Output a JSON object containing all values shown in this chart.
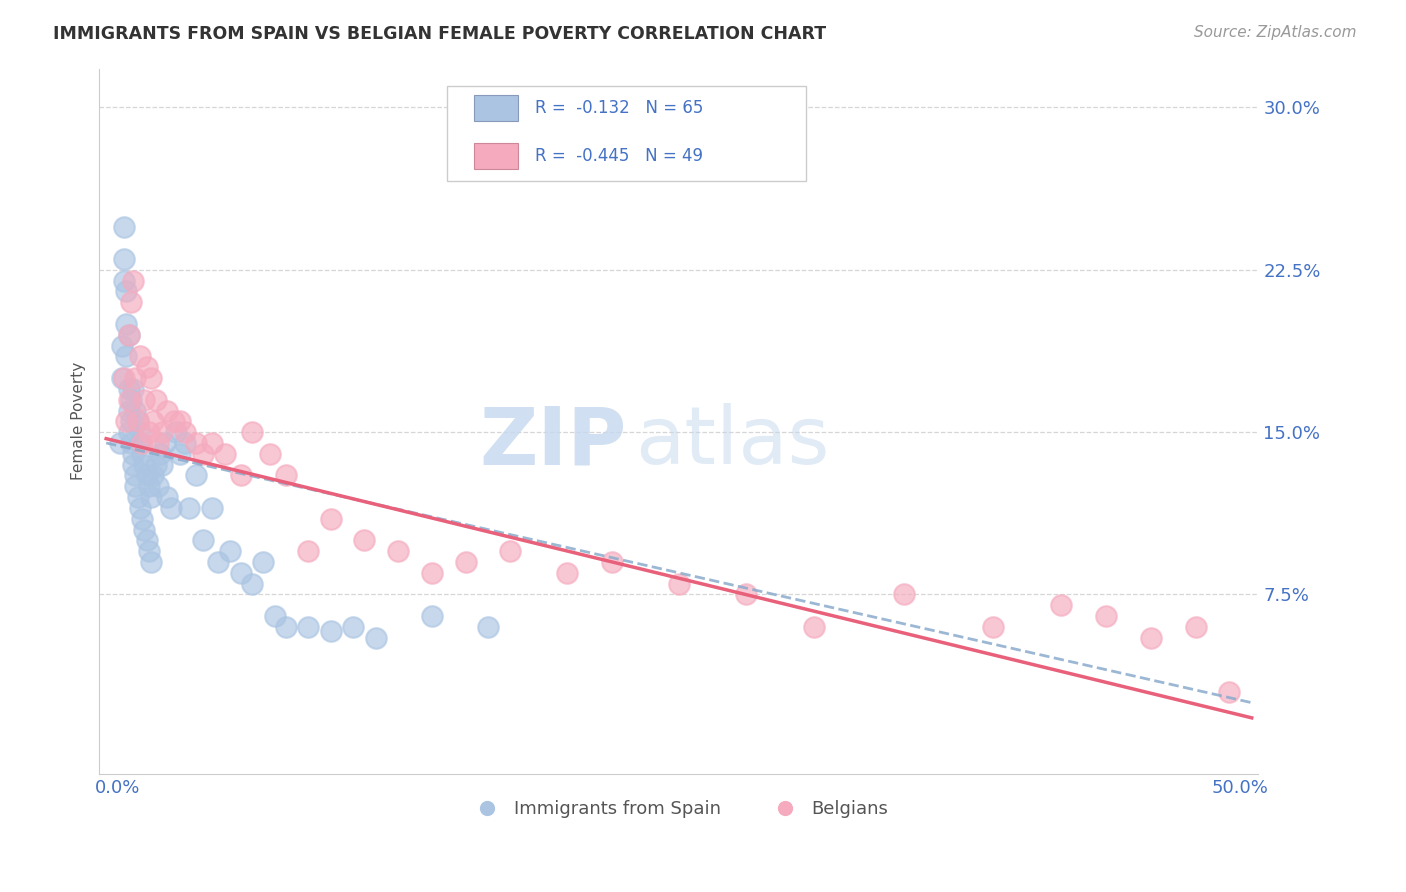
{
  "title": "IMMIGRANTS FROM SPAIN VS BELGIAN FEMALE POVERTY CORRELATION CHART",
  "source": "Source: ZipAtlas.com",
  "ylabel": "Female Poverty",
  "xlim": [
    0.0,
    0.5
  ],
  "ylim": [
    0.0,
    0.315
  ],
  "yticks": [
    0.075,
    0.15,
    0.225,
    0.3
  ],
  "ytick_labels": [
    "7.5%",
    "15.0%",
    "22.5%",
    "30.0%"
  ],
  "r1": -0.132,
  "n1": 65,
  "r2": -0.445,
  "n2": 49,
  "blue_color": "#aac4e2",
  "pink_color": "#f5aabe",
  "blue_line_color": "#8aabcc",
  "pink_line_color": "#e8607a",
  "axis_color": "#4472c4",
  "grid_color": "#cccccc",
  "background_color": "#ffffff",
  "blue_points_x": [
    0.001,
    0.002,
    0.002,
    0.003,
    0.003,
    0.003,
    0.004,
    0.004,
    0.004,
    0.005,
    0.005,
    0.005,
    0.005,
    0.006,
    0.006,
    0.006,
    0.007,
    0.007,
    0.007,
    0.008,
    0.008,
    0.008,
    0.009,
    0.009,
    0.01,
    0.01,
    0.01,
    0.011,
    0.011,
    0.012,
    0.012,
    0.013,
    0.013,
    0.014,
    0.014,
    0.015,
    0.015,
    0.016,
    0.017,
    0.018,
    0.019,
    0.02,
    0.021,
    0.022,
    0.024,
    0.026,
    0.028,
    0.03,
    0.032,
    0.035,
    0.038,
    0.042,
    0.045,
    0.05,
    0.055,
    0.06,
    0.065,
    0.07,
    0.075,
    0.085,
    0.095,
    0.105,
    0.115,
    0.14,
    0.165
  ],
  "blue_points_y": [
    0.145,
    0.19,
    0.175,
    0.22,
    0.23,
    0.245,
    0.2,
    0.215,
    0.185,
    0.17,
    0.16,
    0.15,
    0.195,
    0.165,
    0.155,
    0.145,
    0.14,
    0.135,
    0.17,
    0.13,
    0.125,
    0.16,
    0.12,
    0.155,
    0.115,
    0.15,
    0.145,
    0.11,
    0.14,
    0.105,
    0.135,
    0.1,
    0.13,
    0.095,
    0.125,
    0.09,
    0.12,
    0.13,
    0.135,
    0.125,
    0.14,
    0.135,
    0.145,
    0.12,
    0.115,
    0.15,
    0.14,
    0.145,
    0.115,
    0.13,
    0.1,
    0.115,
    0.09,
    0.095,
    0.085,
    0.08,
    0.09,
    0.065,
    0.06,
    0.06,
    0.058,
    0.06,
    0.055,
    0.065,
    0.06
  ],
  "pink_points_x": [
    0.003,
    0.004,
    0.005,
    0.005,
    0.006,
    0.007,
    0.008,
    0.009,
    0.01,
    0.011,
    0.012,
    0.013,
    0.014,
    0.015,
    0.016,
    0.017,
    0.018,
    0.02,
    0.022,
    0.025,
    0.028,
    0.03,
    0.035,
    0.038,
    0.042,
    0.048,
    0.055,
    0.06,
    0.068,
    0.075,
    0.085,
    0.095,
    0.11,
    0.125,
    0.14,
    0.155,
    0.175,
    0.2,
    0.22,
    0.25,
    0.28,
    0.31,
    0.35,
    0.39,
    0.42,
    0.44,
    0.46,
    0.48,
    0.495
  ],
  "pink_points_y": [
    0.175,
    0.155,
    0.195,
    0.165,
    0.21,
    0.22,
    0.175,
    0.155,
    0.185,
    0.145,
    0.165,
    0.18,
    0.15,
    0.175,
    0.155,
    0.165,
    0.145,
    0.15,
    0.16,
    0.155,
    0.155,
    0.15,
    0.145,
    0.14,
    0.145,
    0.14,
    0.13,
    0.15,
    0.14,
    0.13,
    0.095,
    0.11,
    0.1,
    0.095,
    0.085,
    0.09,
    0.095,
    0.085,
    0.09,
    0.08,
    0.075,
    0.06,
    0.075,
    0.06,
    0.07,
    0.065,
    0.055,
    0.06,
    0.03
  ]
}
